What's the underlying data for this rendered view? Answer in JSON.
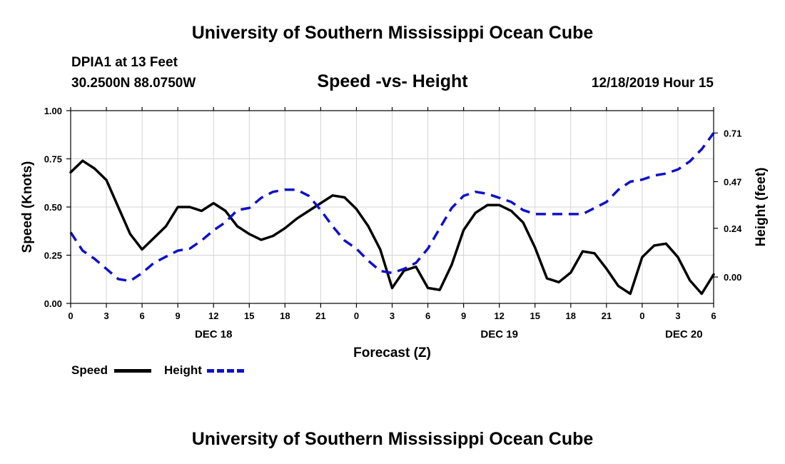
{
  "header": {
    "title": "University of Southern Mississippi Ocean Cube",
    "footer_title": "University of Southern Mississippi Ocean Cube"
  },
  "station": {
    "name": "DPIA1 at 13 Feet",
    "coords": "30.2500N 88.0750W",
    "datetime": "12/18/2019 Hour 15"
  },
  "legend": {
    "speed_label": "Speed",
    "height_label": "Height"
  },
  "colors": {
    "speed": "#000000",
    "height": "#1010cc",
    "grid": "#d4d4d4"
  },
  "chart_data": {
    "type": "line",
    "title": "Speed -vs- Height",
    "xlabel": "Forecast (Z)",
    "ylabel": "Speed (Knots)",
    "ylabel_right": "Height (feet)",
    "xlim": [
      0,
      54
    ],
    "ylim": [
      0,
      1.0
    ],
    "ylim_right": [
      -0.13,
      0.82
    ],
    "x_ticks": [
      0,
      3,
      6,
      9,
      12,
      15,
      18,
      21,
      24,
      27,
      30,
      33,
      36,
      39,
      42,
      45,
      48,
      51,
      54
    ],
    "x_tick_labels": [
      "0",
      "3",
      "6",
      "9",
      "12",
      "15",
      "18",
      "21",
      "0",
      "3",
      "6",
      "9",
      "12",
      "15",
      "18",
      "21",
      "0",
      "3",
      "6"
    ],
    "day_labels": [
      {
        "x": 12,
        "label": "DEC 18"
      },
      {
        "x": 36,
        "label": "DEC 19"
      },
      {
        "x": 51.5,
        "label": "DEC 20"
      }
    ],
    "y_ticks": [
      0.0,
      0.25,
      0.5,
      0.75,
      1.0
    ],
    "y_tick_labels": [
      "0.00",
      "0.25",
      "0.50",
      "0.75",
      "1.00"
    ],
    "y_right_ticks": [
      0.0,
      0.24,
      0.47,
      0.71
    ],
    "y_right_tick_labels": [
      "0.00",
      "0.24",
      "0.47",
      "0.71"
    ],
    "grid": true,
    "series": [
      {
        "name": "Speed",
        "axis": "left",
        "style": "solid",
        "x": [
          0,
          1,
          2,
          3,
          4,
          5,
          6,
          7,
          8,
          9,
          10,
          11,
          12,
          13,
          14,
          15,
          16,
          17,
          18,
          19,
          20,
          21,
          22,
          23,
          24,
          25,
          26,
          27,
          28,
          29,
          30,
          31,
          32,
          33,
          34,
          35,
          36,
          37,
          38,
          39,
          40,
          41,
          42,
          43,
          44,
          45,
          46,
          47,
          48,
          49,
          50,
          51,
          52,
          53,
          54
        ],
        "values": [
          0.68,
          0.74,
          0.7,
          0.64,
          0.5,
          0.36,
          0.28,
          0.34,
          0.4,
          0.5,
          0.5,
          0.48,
          0.52,
          0.48,
          0.4,
          0.36,
          0.33,
          0.35,
          0.39,
          0.44,
          0.48,
          0.52,
          0.56,
          0.55,
          0.49,
          0.4,
          0.28,
          0.08,
          0.17,
          0.19,
          0.08,
          0.07,
          0.2,
          0.38,
          0.47,
          0.51,
          0.51,
          0.48,
          0.42,
          0.29,
          0.13,
          0.11,
          0.16,
          0.27,
          0.26,
          0.18,
          0.09,
          0.05,
          0.24,
          0.3,
          0.31,
          0.24,
          0.12,
          0.05,
          0.15
        ]
      },
      {
        "name": "Height",
        "axis": "right",
        "style": "dashed",
        "x": [
          0,
          1,
          2,
          3,
          4,
          5,
          6,
          7,
          8,
          9,
          10,
          11,
          12,
          13,
          14,
          15,
          16,
          17,
          18,
          19,
          20,
          21,
          22,
          23,
          24,
          25,
          26,
          27,
          28,
          29,
          30,
          31,
          32,
          33,
          34,
          35,
          36,
          37,
          38,
          39,
          40,
          41,
          42,
          43,
          44,
          45,
          46,
          47,
          48,
          49,
          50,
          51,
          52,
          53,
          54
        ],
        "values": [
          0.22,
          0.13,
          0.09,
          0.04,
          -0.01,
          -0.02,
          0.02,
          0.07,
          0.1,
          0.13,
          0.14,
          0.18,
          0.23,
          0.27,
          0.33,
          0.34,
          0.39,
          0.42,
          0.43,
          0.43,
          0.4,
          0.33,
          0.25,
          0.18,
          0.14,
          0.08,
          0.03,
          0.02,
          0.04,
          0.07,
          0.14,
          0.24,
          0.34,
          0.4,
          0.42,
          0.41,
          0.39,
          0.37,
          0.33,
          0.31,
          0.31,
          0.31,
          0.31,
          0.31,
          0.34,
          0.37,
          0.43,
          0.47,
          0.48,
          0.5,
          0.51,
          0.53,
          0.57,
          0.63,
          0.71
        ]
      }
    ]
  }
}
